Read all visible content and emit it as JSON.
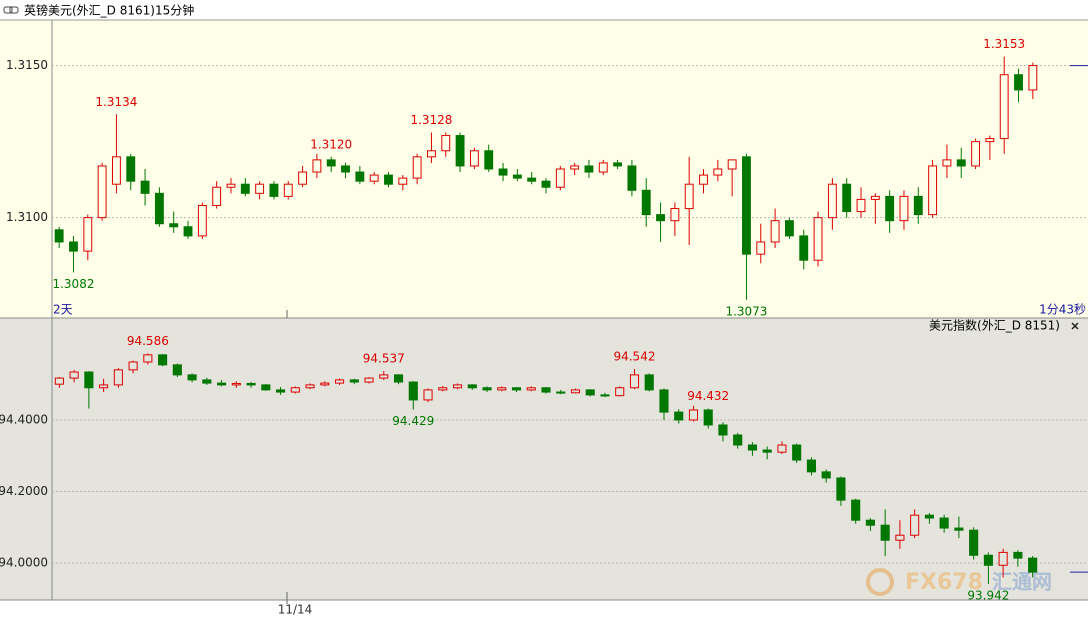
{
  "chart_data": [
    {
      "type": "candlestick",
      "title": "英镑美元(外汇_D 8161)15分钟",
      "start_label": "2天",
      "end_label": "1分43秒",
      "up_color": "#dd0000",
      "down_color": "#007700",
      "grid": true,
      "ylim": [
        1.3067,
        1.3165
      ],
      "yticks": [
        {
          "value": 1.315,
          "label": "1.3150"
        },
        {
          "value": 1.31,
          "label": "1.3100"
        }
      ],
      "annotations": [
        1.3134,
        1.3128,
        {
          "value": 1.312,
          "label": "1.3120"
        },
        1.3153,
        1.3082,
        1.3073
      ],
      "candles": [
        [
          1.3096,
          1.3097,
          1.309,
          1.3092
        ],
        [
          1.3092,
          1.3094,
          1.3082,
          1.3089
        ],
        [
          1.3089,
          1.3101,
          1.3086,
          1.31
        ],
        [
          1.31,
          1.3118,
          1.3099,
          1.3117
        ],
        [
          1.3111,
          1.3134,
          1.3108,
          1.312
        ],
        [
          1.312,
          1.3121,
          1.3109,
          1.3112
        ],
        [
          1.3112,
          1.3116,
          1.3104,
          1.3108
        ],
        [
          1.3108,
          1.311,
          1.3097,
          1.3098
        ],
        [
          1.3098,
          1.3102,
          1.3095,
          1.3097
        ],
        [
          1.3097,
          1.3099,
          1.3093,
          1.3094
        ],
        [
          1.3094,
          1.3105,
          1.3093,
          1.3104
        ],
        [
          1.3104,
          1.3112,
          1.3103,
          1.311
        ],
        [
          1.311,
          1.3113,
          1.3108,
          1.3111
        ],
        [
          1.3111,
          1.3113,
          1.3107,
          1.3108
        ],
        [
          1.3108,
          1.3112,
          1.3106,
          1.3111
        ],
        [
          1.3111,
          1.3112,
          1.3106,
          1.3107
        ],
        [
          1.3107,
          1.3112,
          1.3106,
          1.3111
        ],
        [
          1.3111,
          1.3117,
          1.311,
          1.3115
        ],
        [
          1.3115,
          1.3121,
          1.3113,
          1.3119
        ],
        [
          1.3119,
          1.312,
          1.3115,
          1.3117
        ],
        [
          1.3117,
          1.3118,
          1.3113,
          1.3115
        ],
        [
          1.3115,
          1.3117,
          1.3111,
          1.3112
        ],
        [
          1.3112,
          1.3115,
          1.3111,
          1.3114
        ],
        [
          1.3114,
          1.3115,
          1.311,
          1.3111
        ],
        [
          1.3111,
          1.3114,
          1.3109,
          1.3113
        ],
        [
          1.3113,
          1.3121,
          1.3111,
          1.312
        ],
        [
          1.312,
          1.3128,
          1.3118,
          1.3122
        ],
        [
          1.3122,
          1.3128,
          1.312,
          1.3127
        ],
        [
          1.3127,
          1.3128,
          1.3115,
          1.3117
        ],
        [
          1.3117,
          1.3123,
          1.3116,
          1.3122
        ],
        [
          1.3122,
          1.3124,
          1.3115,
          1.3116
        ],
        [
          1.3116,
          1.3118,
          1.3112,
          1.3114
        ],
        [
          1.3114,
          1.3116,
          1.3112,
          1.3113
        ],
        [
          1.3113,
          1.3115,
          1.3111,
          1.3112
        ],
        [
          1.3112,
          1.3113,
          1.3108,
          1.311
        ],
        [
          1.311,
          1.3117,
          1.3109,
          1.3116
        ],
        [
          1.3116,
          1.3118,
          1.3114,
          1.3117
        ],
        [
          1.3117,
          1.3119,
          1.3113,
          1.3115
        ],
        [
          1.3115,
          1.3119,
          1.3114,
          1.3118
        ],
        [
          1.3118,
          1.3119,
          1.3116,
          1.3117
        ],
        [
          1.3117,
          1.3119,
          1.3107,
          1.3109
        ],
        [
          1.3109,
          1.3113,
          1.3097,
          1.3101
        ],
        [
          1.3101,
          1.3105,
          1.3092,
          1.3099
        ],
        [
          1.3099,
          1.3105,
          1.3094,
          1.3103
        ],
        [
          1.3103,
          1.312,
          1.3091,
          1.3111
        ],
        [
          1.3111,
          1.3116,
          1.3108,
          1.3114
        ],
        [
          1.3114,
          1.3119,
          1.3112,
          1.3116
        ],
        [
          1.3116,
          1.3119,
          1.3107,
          1.3119
        ],
        [
          1.312,
          1.3121,
          1.3073,
          1.3088
        ],
        [
          1.3088,
          1.3098,
          1.3085,
          1.3092
        ],
        [
          1.3092,
          1.3103,
          1.309,
          1.3099
        ],
        [
          1.3099,
          1.31,
          1.3093,
          1.3094
        ],
        [
          1.3094,
          1.3096,
          1.3083,
          1.3086
        ],
        [
          1.3086,
          1.3102,
          1.3084,
          1.31
        ],
        [
          1.31,
          1.3113,
          1.3096,
          1.3111
        ],
        [
          1.3111,
          1.3113,
          1.31,
          1.3102
        ],
        [
          1.3102,
          1.311,
          1.31,
          1.3106
        ],
        [
          1.3106,
          1.3108,
          1.3098,
          1.3107
        ],
        [
          1.3107,
          1.3109,
          1.3095,
          1.3099
        ],
        [
          1.3099,
          1.3109,
          1.3096,
          1.3107
        ],
        [
          1.3107,
          1.311,
          1.3098,
          1.3101
        ],
        [
          1.3101,
          1.3119,
          1.31,
          1.3117
        ],
        [
          1.3117,
          1.3124,
          1.3113,
          1.3119
        ],
        [
          1.3119,
          1.3123,
          1.3113,
          1.3117
        ],
        [
          1.3117,
          1.3126,
          1.3116,
          1.3125
        ],
        [
          1.3125,
          1.3127,
          1.3119,
          1.3126
        ],
        [
          1.3126,
          1.3153,
          1.3121,
          1.3147
        ],
        [
          1.3147,
          1.3149,
          1.3138,
          1.3142
        ],
        [
          1.3142,
          1.3151,
          1.3139,
          1.315
        ]
      ]
    },
    {
      "type": "candlestick",
      "title": "美元指数(外汇_D 8151)",
      "date_label": "11/14",
      "up_color": "#dd0000",
      "down_color": "#007700",
      "grid": true,
      "ylim": [
        93.897,
        94.643
      ],
      "yticks": [
        {
          "value": 94.4,
          "label": "94.4000"
        },
        {
          "value": 94.2,
          "label": "94.2000"
        },
        {
          "value": 94,
          "label": "94.0000"
        }
      ],
      "annotations": [
        94.586,
        94.537,
        94.542,
        94.432,
        94.429,
        93.942
      ],
      "candles": [
        [
          94.5,
          94.52,
          94.49,
          94.517
        ],
        [
          94.517,
          94.54,
          94.505,
          94.534
        ],
        [
          94.534,
          94.536,
          94.432,
          94.49
        ],
        [
          94.49,
          94.515,
          94.478,
          94.498
        ],
        [
          94.498,
          94.545,
          94.49,
          94.54
        ],
        [
          94.54,
          94.566,
          94.53,
          94.562
        ],
        [
          94.562,
          94.586,
          94.555,
          94.582
        ],
        [
          94.582,
          94.584,
          94.55,
          94.554
        ],
        [
          94.554,
          94.558,
          94.52,
          94.526
        ],
        [
          94.526,
          94.53,
          94.505,
          94.512
        ],
        [
          94.512,
          94.518,
          94.498,
          94.503
        ],
        [
          94.503,
          94.512,
          94.494,
          94.498
        ],
        [
          94.498,
          94.508,
          94.49,
          94.502
        ],
        [
          94.502,
          94.506,
          94.49,
          94.498
        ],
        [
          94.498,
          94.5,
          94.482,
          94.484
        ],
        [
          94.484,
          94.492,
          94.47,
          94.478
        ],
        [
          94.478,
          94.494,
          94.474,
          94.49
        ],
        [
          94.49,
          94.502,
          94.486,
          94.498
        ],
        [
          94.498,
          94.508,
          94.494,
          94.503
        ],
        [
          94.503,
          94.516,
          94.498,
          94.512
        ],
        [
          94.512,
          94.515,
          94.5,
          94.506
        ],
        [
          94.506,
          94.52,
          94.502,
          94.517
        ],
        [
          94.517,
          94.537,
          94.512,
          94.526
        ],
        [
          94.526,
          94.528,
          94.5,
          94.506
        ],
        [
          94.506,
          94.508,
          94.429,
          94.456
        ],
        [
          94.456,
          94.488,
          94.45,
          94.484
        ],
        [
          94.484,
          94.495,
          94.48,
          94.49
        ],
        [
          94.49,
          94.502,
          94.486,
          94.498
        ],
        [
          94.498,
          94.5,
          94.484,
          94.49
        ],
        [
          94.49,
          94.494,
          94.478,
          94.484
        ],
        [
          94.484,
          94.494,
          94.48,
          94.49
        ],
        [
          94.49,
          94.492,
          94.478,
          94.484
        ],
        [
          94.484,
          94.494,
          94.48,
          94.49
        ],
        [
          94.49,
          94.492,
          94.474,
          94.478
        ],
        [
          94.478,
          94.484,
          94.472,
          94.476
        ],
        [
          94.476,
          94.488,
          94.474,
          94.484
        ],
        [
          94.484,
          94.486,
          94.466,
          94.47
        ],
        [
          94.47,
          94.476,
          94.464,
          94.468
        ],
        [
          94.468,
          94.494,
          94.466,
          94.49
        ],
        [
          94.49,
          94.542,
          94.486,
          94.526
        ],
        [
          94.526,
          94.53,
          94.48,
          94.484
        ],
        [
          94.484,
          94.488,
          94.4,
          94.422
        ],
        [
          94.422,
          94.43,
          94.39,
          94.4
        ],
        [
          94.4,
          94.44,
          94.396,
          94.428
        ],
        [
          94.428,
          94.432,
          94.376,
          94.386
        ],
        [
          94.386,
          94.394,
          94.34,
          94.358
        ],
        [
          94.358,
          94.364,
          94.32,
          94.33
        ],
        [
          94.33,
          94.338,
          94.3,
          94.316
        ],
        [
          94.316,
          94.326,
          94.29,
          94.31
        ],
        [
          94.31,
          94.34,
          94.305,
          94.33
        ],
        [
          94.33,
          94.334,
          94.28,
          94.288
        ],
        [
          94.288,
          94.296,
          94.245,
          94.255
        ],
        [
          94.255,
          94.262,
          94.225,
          94.238
        ],
        [
          94.238,
          94.242,
          94.16,
          94.176
        ],
        [
          94.176,
          94.18,
          94.11,
          94.12
        ],
        [
          94.12,
          94.126,
          94.09,
          94.106
        ],
        [
          94.106,
          94.15,
          94.02,
          94.064
        ],
        [
          94.064,
          94.12,
          94.04,
          94.078
        ],
        [
          94.078,
          94.15,
          94.07,
          94.134
        ],
        [
          94.134,
          94.14,
          94.11,
          94.126
        ],
        [
          94.126,
          94.135,
          94.085,
          94.098
        ],
        [
          94.098,
          94.13,
          94.07,
          94.092
        ],
        [
          94.092,
          94.1,
          94.01,
          94.022
        ],
        [
          94.022,
          94.03,
          93.942,
          93.994
        ],
        [
          93.994,
          94.04,
          93.96,
          94.03
        ],
        [
          94.03,
          94.036,
          93.99,
          94.014
        ],
        [
          94.014,
          94.02,
          93.96,
          93.975
        ]
      ]
    }
  ],
  "watermark": {
    "brand": "FX678",
    "name": "汇通网"
  }
}
